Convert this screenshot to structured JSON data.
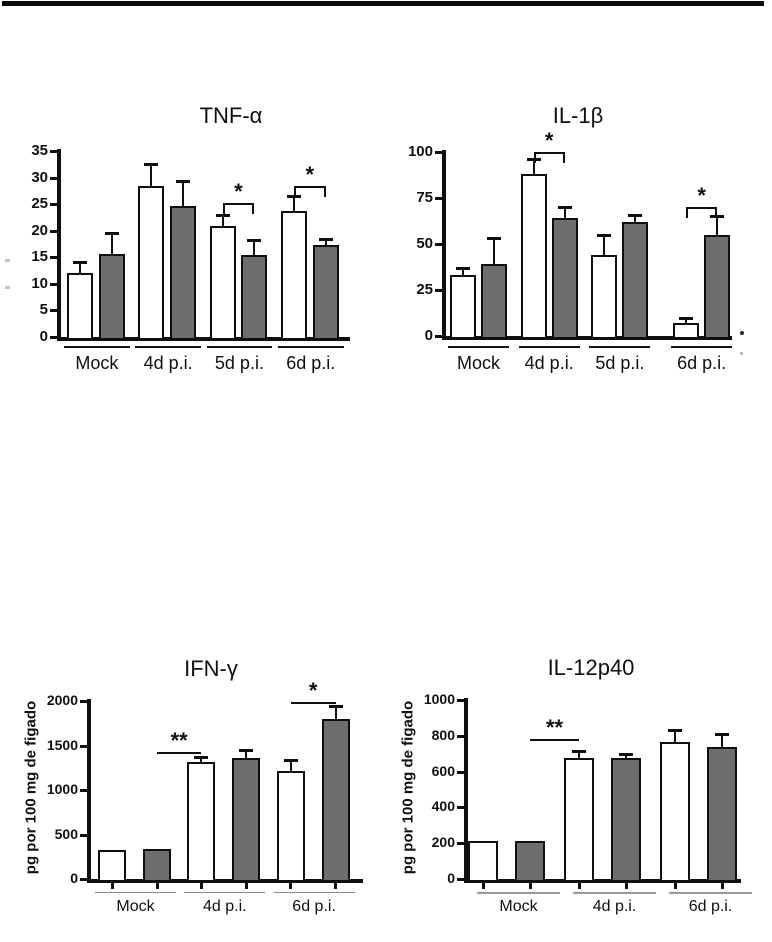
{
  "chart_data": [
    {
      "id": "tnf-alpha",
      "type": "bar",
      "title": "TNF-α",
      "categories": [
        "Mock",
        "4d p.i.",
        "5d p.i.",
        "6d p.i."
      ],
      "series": [
        {
          "name": "white",
          "fill": "#ffffff",
          "values": [
            12,
            28.4,
            20.8,
            23.7
          ],
          "errors": [
            2.2,
            4.2,
            2.1,
            2.8
          ]
        },
        {
          "name": "gray",
          "fill": "#6e6e6e",
          "values": [
            15.7,
            24.7,
            15.5,
            17.4
          ],
          "errors": [
            3.9,
            4.7,
            2.7,
            1.1
          ]
        }
      ],
      "ylabel": "",
      "ylim": [
        0,
        35
      ],
      "yticks": [
        0,
        5,
        10,
        15,
        20,
        25,
        30,
        35
      ],
      "grid": false,
      "legend": "none",
      "annotations": [
        {
          "text": "*",
          "style": "bracket",
          "from": [
            2,
            0
          ],
          "to": [
            2,
            1
          ],
          "y": 25.3
        },
        {
          "text": "*",
          "style": "bracket",
          "from": [
            3,
            0
          ],
          "to": [
            3,
            1
          ],
          "y": 28.4
        }
      ]
    },
    {
      "id": "il-1beta",
      "type": "bar",
      "title": "IL-1β",
      "categories": [
        "Mock",
        "4d p.i.",
        "5d p.i.",
        "6d p.i."
      ],
      "series": [
        {
          "name": "white",
          "fill": "#ffffff",
          "values": [
            33,
            88,
            44,
            7
          ],
          "errors": [
            4,
            8,
            11,
            3
          ]
        },
        {
          "name": "gray",
          "fill": "#6e6e6e",
          "values": [
            39,
            64,
            62,
            55
          ],
          "errors": [
            14,
            6,
            4,
            10
          ]
        }
      ],
      "ylabel": "",
      "ylim": [
        0,
        100
      ],
      "yticks": [
        0,
        25,
        50,
        75,
        100
      ],
      "grid": false,
      "legend": "none",
      "annotations": [
        {
          "text": "*",
          "style": "bracket",
          "from": [
            1,
            0
          ],
          "to": [
            1,
            1
          ],
          "y": 100
        },
        {
          "text": "*",
          "style": "bracket",
          "from": [
            3,
            0
          ],
          "to": [
            3,
            1
          ],
          "y": 70
        }
      ]
    },
    {
      "id": "ifn-gamma",
      "type": "bar",
      "title": "IFN-γ",
      "categories": [
        "Mock",
        "4d p.i.",
        "6d p.i."
      ],
      "series": [
        {
          "name": "white",
          "fill": "#ffffff",
          "values": [
            330,
            1320,
            1210
          ],
          "errors": [
            0,
            50,
            130
          ]
        },
        {
          "name": "gray",
          "fill": "#6e6e6e",
          "values": [
            335,
            1355,
            1800
          ],
          "errors": [
            0,
            90,
            145
          ]
        }
      ],
      "ylabel": "pg por 100 mg de figado",
      "ylim": [
        0,
        2000
      ],
      "yticks": [
        0,
        500,
        1000,
        1500,
        2000
      ],
      "grid": false,
      "legend": "none",
      "annotations": [
        {
          "text": "**",
          "style": "line",
          "from": [
            0,
            1
          ],
          "to": [
            1,
            0
          ],
          "y": 1430
        },
        {
          "text": "*",
          "style": "line",
          "from": [
            2,
            0
          ],
          "to": [
            2,
            1
          ],
          "y": 1990
        }
      ]
    },
    {
      "id": "il-12p40",
      "type": "bar",
      "title": "IL-12p40",
      "categories": [
        "Mock",
        "4d p.i.",
        "6d p.i."
      ],
      "series": [
        {
          "name": "white",
          "fill": "#ffffff",
          "values": [
            215,
            675,
            765
          ],
          "errors": [
            0,
            40,
            65
          ]
        },
        {
          "name": "gray",
          "fill": "#6e6e6e",
          "values": [
            212,
            678,
            740
          ],
          "errors": [
            0,
            22,
            70
          ]
        }
      ],
      "ylabel": "pg por 100 mg de figado",
      "ylim": [
        0,
        1000
      ],
      "yticks": [
        0,
        200,
        400,
        600,
        800,
        1000
      ],
      "grid": false,
      "legend": "none",
      "annotations": [
        {
          "text": "**",
          "style": "line",
          "from": [
            0,
            1
          ],
          "to": [
            1,
            0
          ],
          "y": 780
        }
      ]
    }
  ]
}
